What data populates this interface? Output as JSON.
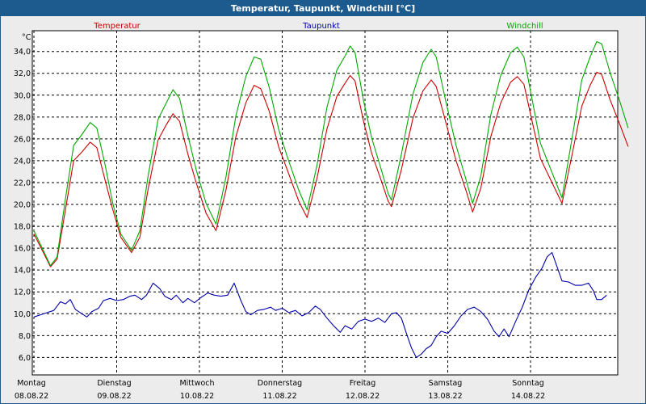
{
  "title": "Temperatur, Taupunkt, Windchill [°C]",
  "colors": {
    "title_bg": "#1d5b8f",
    "panel_bg": "#ececec",
    "plot_bg": "#ffffff"
  },
  "chart_data": {
    "type": "line",
    "ylabel": "°C",
    "ylim": [
      4.4,
      35.9
    ],
    "yticks": [
      6.0,
      8.0,
      10.0,
      12.0,
      14.0,
      16.0,
      18.0,
      20.0,
      22.0,
      24.0,
      26.0,
      28.0,
      30.0,
      32.0,
      34.0
    ],
    "ytick_labels": [
      "6,0",
      "8,0",
      "10,0",
      "12,0",
      "14,0",
      "16,0",
      "18,0",
      "20,0",
      "22,0",
      "24,0",
      "26,0",
      "28,0",
      "30,0",
      "32,0",
      "34,0"
    ],
    "xlim": [
      0,
      7.2
    ],
    "xticks": [
      0,
      1,
      2,
      3,
      4,
      5,
      6
    ],
    "xtick_labels": [
      {
        "day": "Montag",
        "date": "08.08.22"
      },
      {
        "day": "Dienstag",
        "date": "09.08.22"
      },
      {
        "day": "Mittwoch",
        "date": "10.08.22"
      },
      {
        "day": "Donnerstag",
        "date": "11.08.22"
      },
      {
        "day": "Freitag",
        "date": "12.08.22"
      },
      {
        "day": "Samstag",
        "date": "13.08.22"
      },
      {
        "day": "Sonntag",
        "date": "14.08.22"
      }
    ],
    "grid": true,
    "legend_position": "top",
    "series": [
      {
        "name": "Temperatur",
        "color": "#cc0000",
        "points": [
          [
            0,
            17.3
          ],
          [
            0.1,
            15.8
          ],
          [
            0.2,
            14.3
          ],
          [
            0.28,
            15.0
          ],
          [
            0.38,
            19.5
          ],
          [
            0.48,
            24.0
          ],
          [
            0.58,
            24.8
          ],
          [
            0.68,
            25.7
          ],
          [
            0.76,
            25.2
          ],
          [
            0.86,
            22.2
          ],
          [
            0.95,
            19.6
          ],
          [
            1.05,
            17.0
          ],
          [
            1.18,
            15.6
          ],
          [
            1.28,
            17.0
          ],
          [
            1.38,
            21.4
          ],
          [
            1.5,
            25.9
          ],
          [
            1.6,
            27.3
          ],
          [
            1.68,
            28.3
          ],
          [
            1.76,
            27.6
          ],
          [
            1.86,
            24.6
          ],
          [
            1.96,
            22.0
          ],
          [
            2.08,
            19.2
          ],
          [
            2.2,
            17.6
          ],
          [
            2.32,
            21.3
          ],
          [
            2.44,
            26.2
          ],
          [
            2.56,
            29.3
          ],
          [
            2.66,
            30.9
          ],
          [
            2.74,
            30.6
          ],
          [
            2.84,
            28.6
          ],
          [
            2.96,
            25.2
          ],
          [
            3.06,
            23.2
          ],
          [
            3.2,
            20.3
          ],
          [
            3.3,
            18.8
          ],
          [
            3.42,
            22.4
          ],
          [
            3.54,
            26.9
          ],
          [
            3.66,
            29.9
          ],
          [
            3.76,
            31.1
          ],
          [
            3.82,
            31.8
          ],
          [
            3.88,
            31.3
          ],
          [
            3.98,
            27.7
          ],
          [
            4.08,
            24.7
          ],
          [
            4.2,
            22.1
          ],
          [
            4.28,
            20.3
          ],
          [
            4.32,
            19.8
          ],
          [
            4.44,
            23.2
          ],
          [
            4.58,
            27.9
          ],
          [
            4.7,
            30.4
          ],
          [
            4.8,
            31.4
          ],
          [
            4.86,
            30.8
          ],
          [
            4.98,
            27.4
          ],
          [
            5.1,
            24.0
          ],
          [
            5.22,
            21.3
          ],
          [
            5.3,
            19.3
          ],
          [
            5.4,
            21.5
          ],
          [
            5.52,
            26.2
          ],
          [
            5.64,
            29.3
          ],
          [
            5.76,
            31.2
          ],
          [
            5.84,
            31.7
          ],
          [
            5.92,
            31.0
          ],
          [
            6.02,
            27.6
          ],
          [
            6.12,
            24.2
          ],
          [
            6.24,
            22.3
          ],
          [
            6.38,
            20.1
          ],
          [
            6.5,
            24.5
          ],
          [
            6.62,
            29.0
          ],
          [
            6.72,
            30.9
          ],
          [
            6.8,
            32.1
          ],
          [
            6.86,
            31.9
          ],
          [
            6.96,
            29.6
          ],
          [
            7.08,
            27.3
          ],
          [
            7.18,
            25.3
          ]
        ]
      },
      {
        "name": "Taupunkt",
        "color": "#0000aa",
        "points": [
          [
            0,
            9.7
          ],
          [
            0.08,
            9.9
          ],
          [
            0.16,
            10.1
          ],
          [
            0.24,
            10.3
          ],
          [
            0.32,
            11.1
          ],
          [
            0.38,
            10.9
          ],
          [
            0.44,
            11.3
          ],
          [
            0.5,
            10.4
          ],
          [
            0.58,
            10.0
          ],
          [
            0.64,
            9.7
          ],
          [
            0.7,
            10.2
          ],
          [
            0.78,
            10.5
          ],
          [
            0.84,
            11.2
          ],
          [
            0.92,
            11.4
          ],
          [
            1.0,
            11.2
          ],
          [
            1.08,
            11.3
          ],
          [
            1.16,
            11.6
          ],
          [
            1.22,
            11.7
          ],
          [
            1.3,
            11.3
          ],
          [
            1.36,
            11.7
          ],
          [
            1.44,
            12.8
          ],
          [
            1.52,
            12.3
          ],
          [
            1.58,
            11.6
          ],
          [
            1.66,
            11.3
          ],
          [
            1.72,
            11.7
          ],
          [
            1.8,
            11.0
          ],
          [
            1.86,
            11.4
          ],
          [
            1.94,
            11.0
          ],
          [
            2.02,
            11.5
          ],
          [
            2.1,
            11.9
          ],
          [
            2.18,
            11.7
          ],
          [
            2.26,
            11.6
          ],
          [
            2.34,
            11.7
          ],
          [
            2.42,
            12.8
          ],
          [
            2.5,
            11.2
          ],
          [
            2.56,
            10.2
          ],
          [
            2.62,
            9.9
          ],
          [
            2.7,
            10.3
          ],
          [
            2.78,
            10.4
          ],
          [
            2.86,
            10.6
          ],
          [
            2.92,
            10.3
          ],
          [
            3.0,
            10.5
          ],
          [
            3.08,
            10.1
          ],
          [
            3.16,
            10.3
          ],
          [
            3.24,
            9.8
          ],
          [
            3.32,
            10.1
          ],
          [
            3.4,
            10.7
          ],
          [
            3.46,
            10.4
          ],
          [
            3.54,
            9.6
          ],
          [
            3.62,
            8.9
          ],
          [
            3.7,
            8.3
          ],
          [
            3.76,
            8.9
          ],
          [
            3.84,
            8.6
          ],
          [
            3.92,
            9.3
          ],
          [
            4.0,
            9.5
          ],
          [
            4.08,
            9.3
          ],
          [
            4.16,
            9.6
          ],
          [
            4.24,
            9.2
          ],
          [
            4.32,
            10.0
          ],
          [
            4.38,
            10.1
          ],
          [
            4.44,
            9.6
          ],
          [
            4.5,
            8.2
          ],
          [
            4.56,
            6.9
          ],
          [
            4.62,
            6.0
          ],
          [
            4.68,
            6.3
          ],
          [
            4.74,
            6.8
          ],
          [
            4.8,
            7.1
          ],
          [
            4.86,
            7.9
          ],
          [
            4.92,
            8.4
          ],
          [
            5.0,
            8.2
          ],
          [
            5.08,
            8.9
          ],
          [
            5.16,
            9.8
          ],
          [
            5.24,
            10.4
          ],
          [
            5.32,
            10.6
          ],
          [
            5.4,
            10.2
          ],
          [
            5.48,
            9.5
          ],
          [
            5.56,
            8.4
          ],
          [
            5.62,
            7.9
          ],
          [
            5.68,
            8.6
          ],
          [
            5.74,
            7.9
          ],
          [
            5.82,
            9.3
          ],
          [
            5.9,
            10.6
          ],
          [
            5.98,
            12.2
          ],
          [
            6.06,
            13.3
          ],
          [
            6.14,
            14.2
          ],
          [
            6.2,
            15.2
          ],
          [
            6.26,
            15.6
          ],
          [
            6.32,
            14.3
          ],
          [
            6.38,
            13.0
          ],
          [
            6.46,
            12.9
          ],
          [
            6.54,
            12.6
          ],
          [
            6.62,
            12.6
          ],
          [
            6.7,
            12.8
          ],
          [
            6.76,
            12.1
          ],
          [
            6.8,
            11.3
          ],
          [
            6.86,
            11.3
          ],
          [
            6.92,
            11.7
          ]
        ]
      },
      {
        "name": "Windchill",
        "color": "#00aa00",
        "points": [
          [
            0,
            17.6
          ],
          [
            0.1,
            16.0
          ],
          [
            0.2,
            14.4
          ],
          [
            0.28,
            15.2
          ],
          [
            0.38,
            20.5
          ],
          [
            0.48,
            25.4
          ],
          [
            0.58,
            26.4
          ],
          [
            0.68,
            27.5
          ],
          [
            0.76,
            27.0
          ],
          [
            0.86,
            23.6
          ],
          [
            0.95,
            20.2
          ],
          [
            1.05,
            17.3
          ],
          [
            1.18,
            15.8
          ],
          [
            1.28,
            17.6
          ],
          [
            1.38,
            22.6
          ],
          [
            1.5,
            27.8
          ],
          [
            1.6,
            29.3
          ],
          [
            1.68,
            30.5
          ],
          [
            1.76,
            29.7
          ],
          [
            1.86,
            26.3
          ],
          [
            1.96,
            23.2
          ],
          [
            2.08,
            20.1
          ],
          [
            2.2,
            18.2
          ],
          [
            2.32,
            22.5
          ],
          [
            2.44,
            28.1
          ],
          [
            2.56,
            31.7
          ],
          [
            2.66,
            33.5
          ],
          [
            2.74,
            33.3
          ],
          [
            2.84,
            30.8
          ],
          [
            2.96,
            26.8
          ],
          [
            3.06,
            24.4
          ],
          [
            3.2,
            21.3
          ],
          [
            3.3,
            19.5
          ],
          [
            3.42,
            23.6
          ],
          [
            3.54,
            28.9
          ],
          [
            3.66,
            32.3
          ],
          [
            3.76,
            33.6
          ],
          [
            3.82,
            34.5
          ],
          [
            3.88,
            33.9
          ],
          [
            3.98,
            29.6
          ],
          [
            4.08,
            26.1
          ],
          [
            4.2,
            23.1
          ],
          [
            4.28,
            21.0
          ],
          [
            4.32,
            20.4
          ],
          [
            4.44,
            24.6
          ],
          [
            4.58,
            30.1
          ],
          [
            4.7,
            33.0
          ],
          [
            4.8,
            34.2
          ],
          [
            4.86,
            33.5
          ],
          [
            4.98,
            29.3
          ],
          [
            5.1,
            25.4
          ],
          [
            5.22,
            22.3
          ],
          [
            5.3,
            20.1
          ],
          [
            5.4,
            22.6
          ],
          [
            5.52,
            28.2
          ],
          [
            5.64,
            31.8
          ],
          [
            5.76,
            33.9
          ],
          [
            5.84,
            34.4
          ],
          [
            5.92,
            33.5
          ],
          [
            6.02,
            29.6
          ],
          [
            6.12,
            25.6
          ],
          [
            6.24,
            23.3
          ],
          [
            6.38,
            20.6
          ],
          [
            6.5,
            26.0
          ],
          [
            6.62,
            31.4
          ],
          [
            6.72,
            33.5
          ],
          [
            6.8,
            34.9
          ],
          [
            6.86,
            34.7
          ],
          [
            6.96,
            32.1
          ],
          [
            7.08,
            29.4
          ],
          [
            7.18,
            27.0
          ]
        ]
      }
    ]
  }
}
